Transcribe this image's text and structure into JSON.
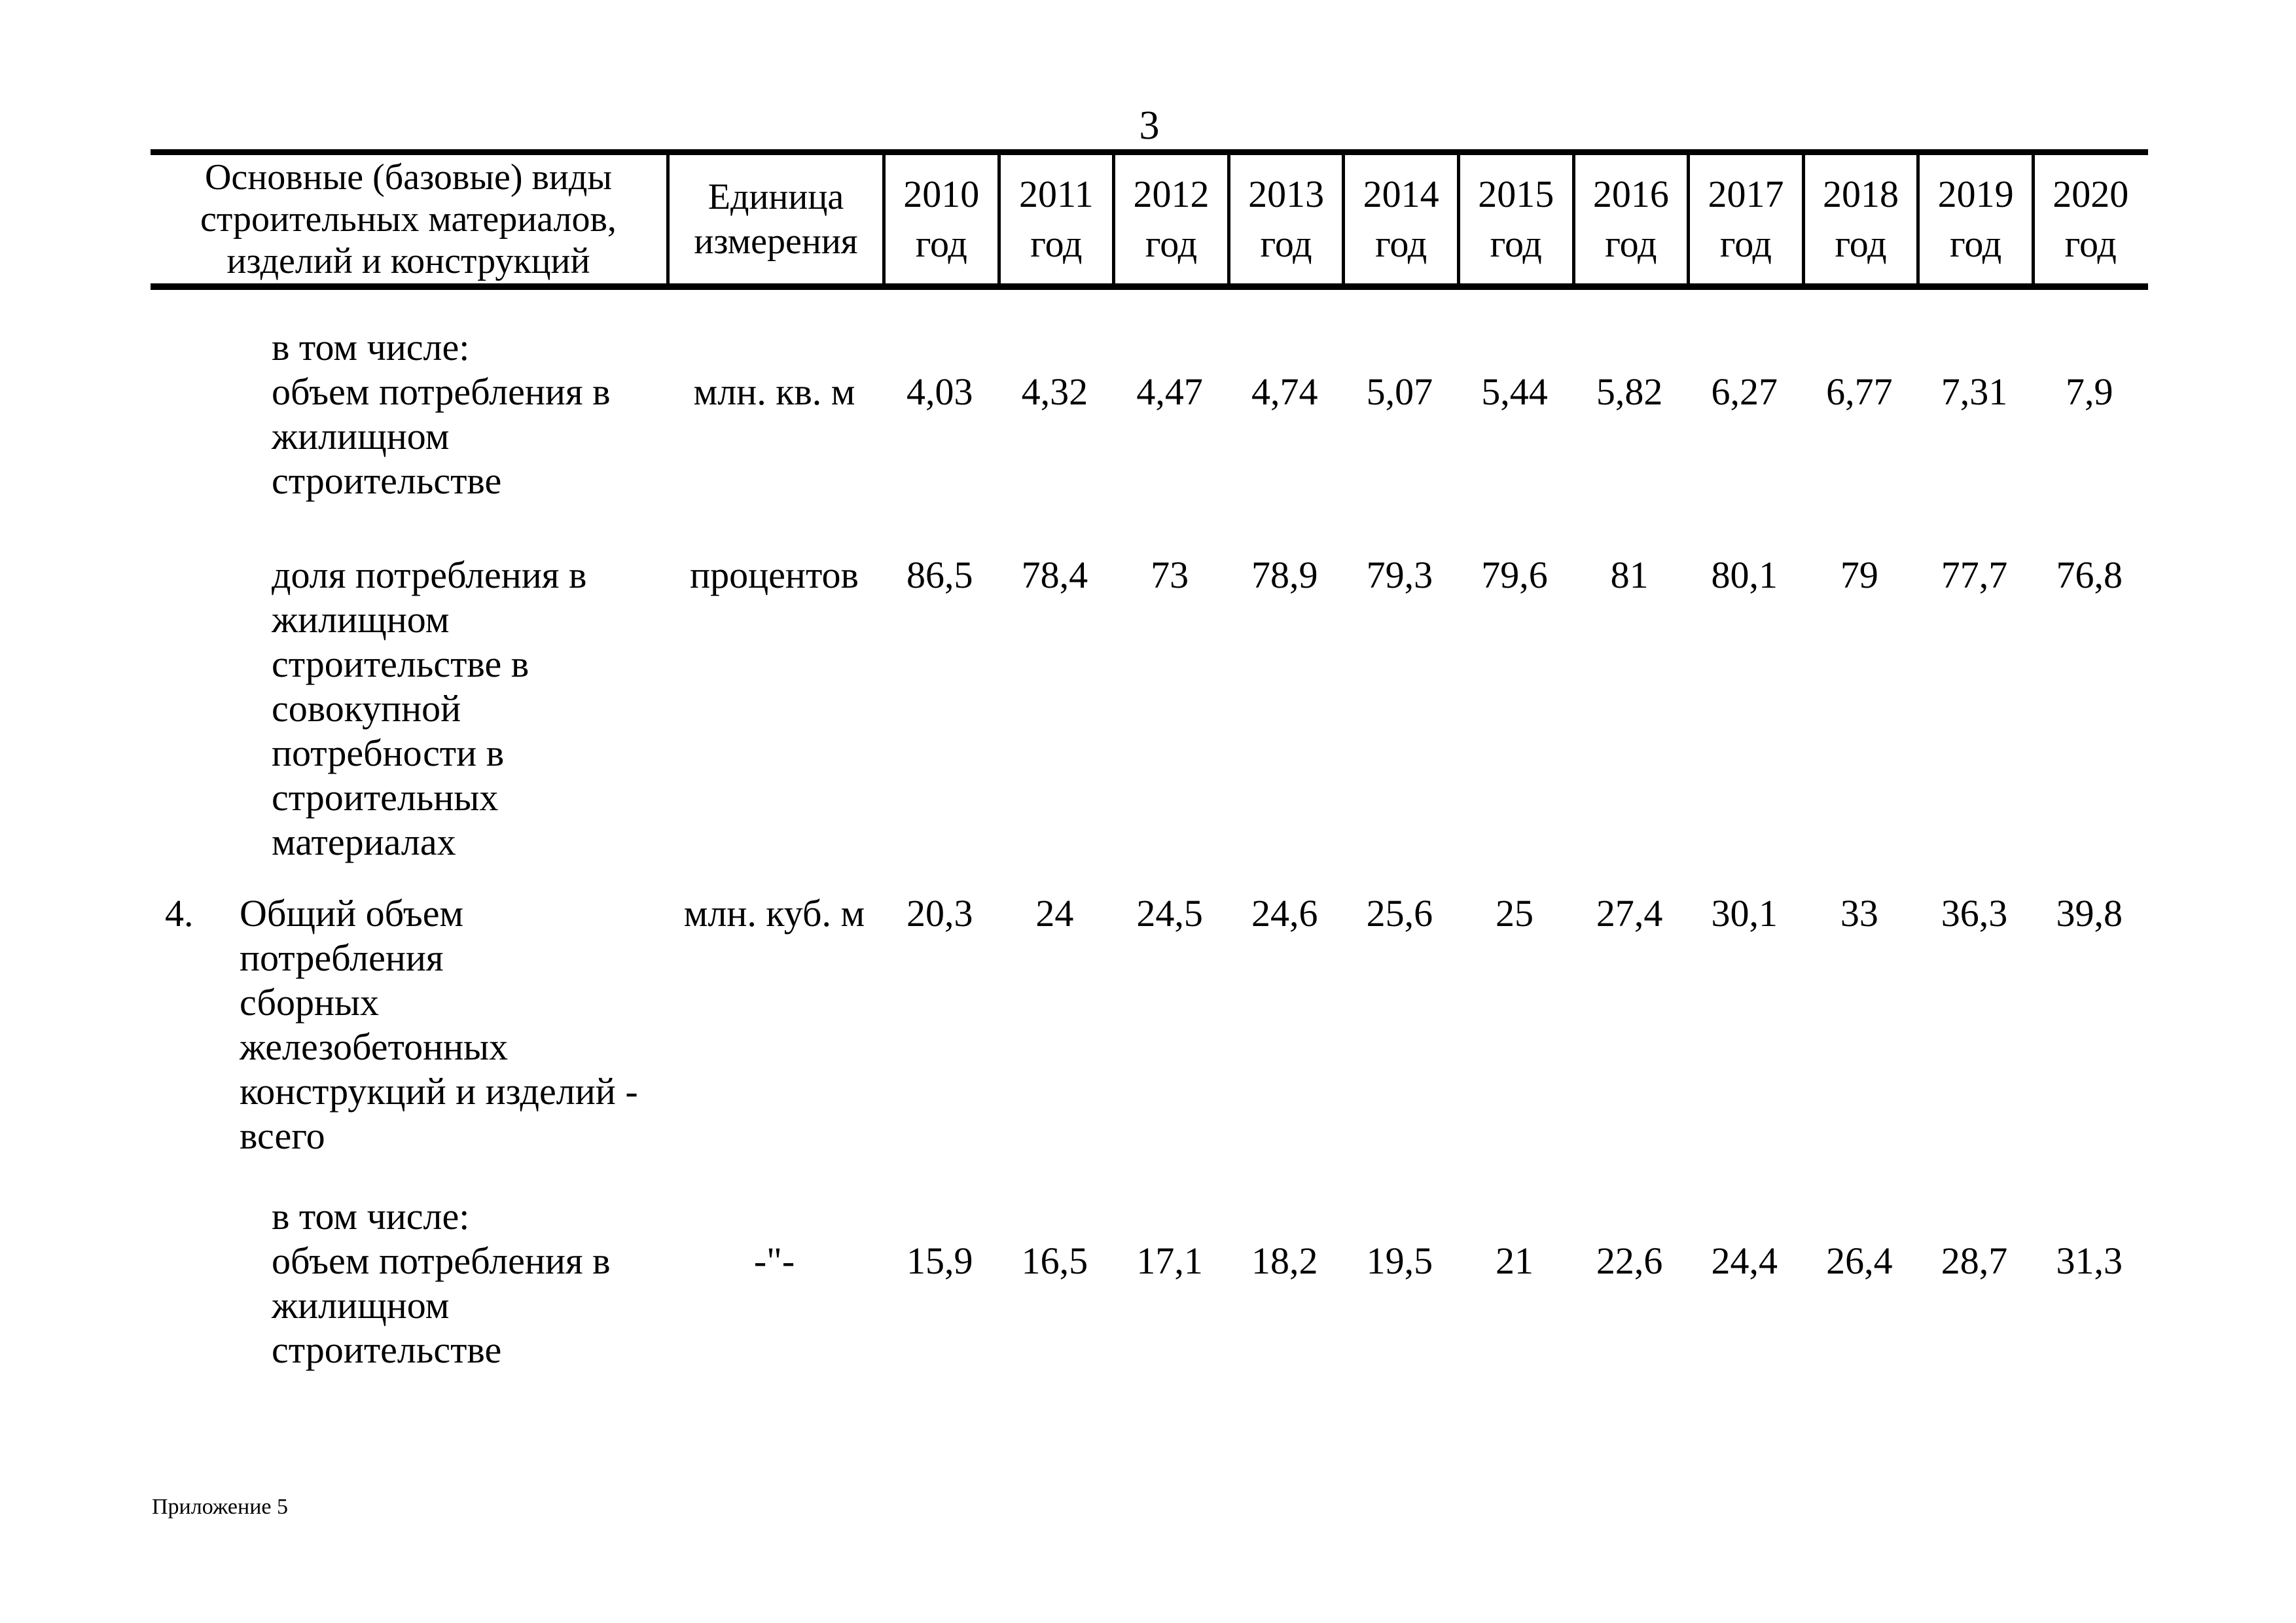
{
  "page_number": "3",
  "footer": "Приложение 5",
  "table": {
    "header": {
      "col_name": "Основные (базовые) виды\nстроительных материалов,\nизделий и конструкций",
      "col_unit": "Единица\nизмерения",
      "years": [
        "2010",
        "2011",
        "2012",
        "2013",
        "2014",
        "2015",
        "2016",
        "2017",
        "2018",
        "2019",
        "2020"
      ],
      "year_suffix": "год"
    },
    "rows": [
      {
        "number": "",
        "name": "в том числе:\nобъем потребления в\nжилищном\nстроительстве",
        "unit": "млн. кв. м",
        "values": [
          "4,03",
          "4,32",
          "4,47",
          "4,74",
          "5,07",
          "5,44",
          "5,82",
          "6,27",
          "6,77",
          "7,31",
          "7,9"
        ]
      },
      {
        "number": "",
        "name": "доля потребления в\nжилищном\nстроительстве в\nсовокупной\nпотребности в\nстроительных\nматериалах",
        "unit": "процентов",
        "values": [
          "86,5",
          "78,4",
          "73",
          "78,9",
          "79,3",
          "79,6",
          "81",
          "80,1",
          "79",
          "77,7",
          "76,8"
        ]
      },
      {
        "number": "4.",
        "name": "Общий объем\nпотребления\nсборных\nжелезобетонных\nконструкций и изделий -\nвсего",
        "unit": "млн. куб. м",
        "values": [
          "20,3",
          "24",
          "24,5",
          "24,6",
          "25,6",
          "25",
          "27,4",
          "30,1",
          "33",
          "36,3",
          "39,8"
        ]
      },
      {
        "number": "",
        "name": "в том числе:\nобъем потребления в\nжилищном\nстроительстве",
        "unit": "-\"-",
        "values": [
          "15,9",
          "16,5",
          "17,1",
          "18,2",
          "19,5",
          "21",
          "22,6",
          "24,4",
          "26,4",
          "28,7",
          "31,3"
        ]
      }
    ]
  }
}
